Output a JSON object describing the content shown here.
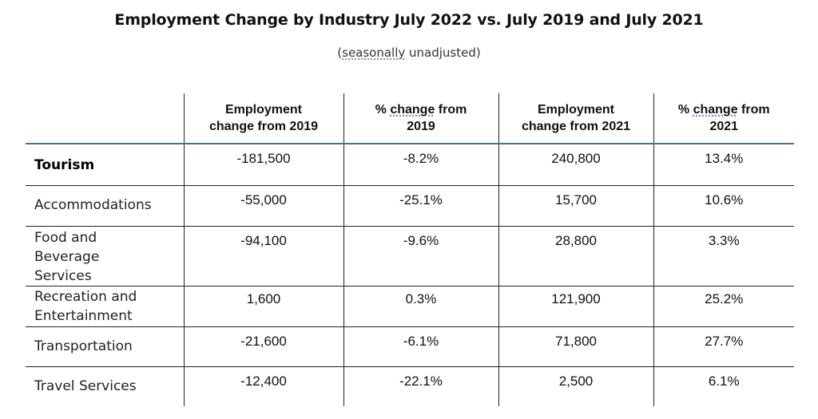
{
  "title": "Employment Change by Industry July 2022 vs. July 2019 and July 2021",
  "subtitle": {
    "open": "(",
    "underlined": "seasonally",
    "rest": " unadjusted)"
  },
  "table": {
    "headers": [
      {
        "line1": "Employment",
        "line2": "change from 2019"
      },
      {
        "pre": "% ",
        "underlined": "change",
        "post": " from",
        "line2": "2019"
      },
      {
        "line1": "Employment",
        "line2": "change from 2021"
      },
      {
        "pre": "% ",
        "underlined": "change",
        "post": " from",
        "line2": "2021"
      }
    ],
    "rows": [
      {
        "label": "Tourism",
        "cells": [
          "-181,500",
          "-8.2%",
          "240,800",
          "13.4%"
        ]
      },
      {
        "label": "Accommodations",
        "cells": [
          "-55,000",
          "-25.1%",
          "15,700",
          "10.6%"
        ]
      },
      {
        "label": "Food and Beverage Services",
        "cells": [
          "-94,100",
          "-9.6%",
          "28,800",
          "3.3%"
        ]
      },
      {
        "label": "Recreation and Entertainment",
        "cells": [
          "1,600",
          "0.3%",
          "121,900",
          "25.2%"
        ]
      },
      {
        "label": "Transportation",
        "cells": [
          "-21,600",
          "-6.1%",
          "71,800",
          "27.7%"
        ]
      },
      {
        "label": "Travel Services",
        "cells": [
          "-12,400",
          "-22.1%",
          "2,500",
          "6.1%"
        ]
      }
    ]
  }
}
